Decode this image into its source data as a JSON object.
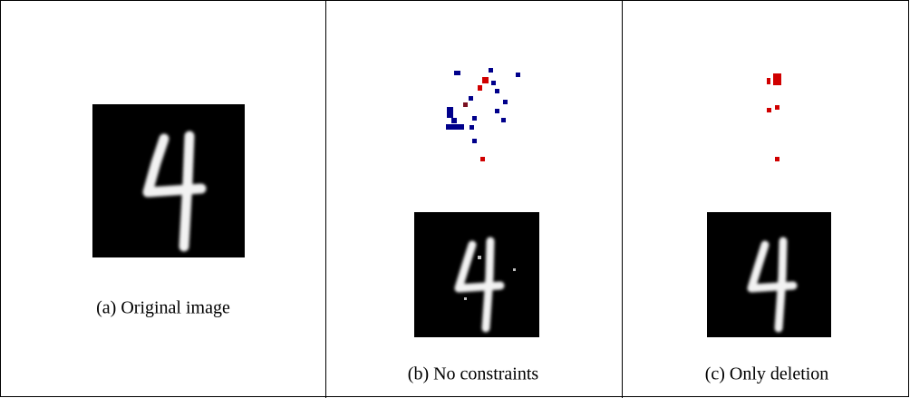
{
  "figure": {
    "panels": [
      {
        "caption": "(a) Original image"
      },
      {
        "caption": "(b) No constraints"
      },
      {
        "caption": "(c) Only deletion"
      }
    ]
  }
}
